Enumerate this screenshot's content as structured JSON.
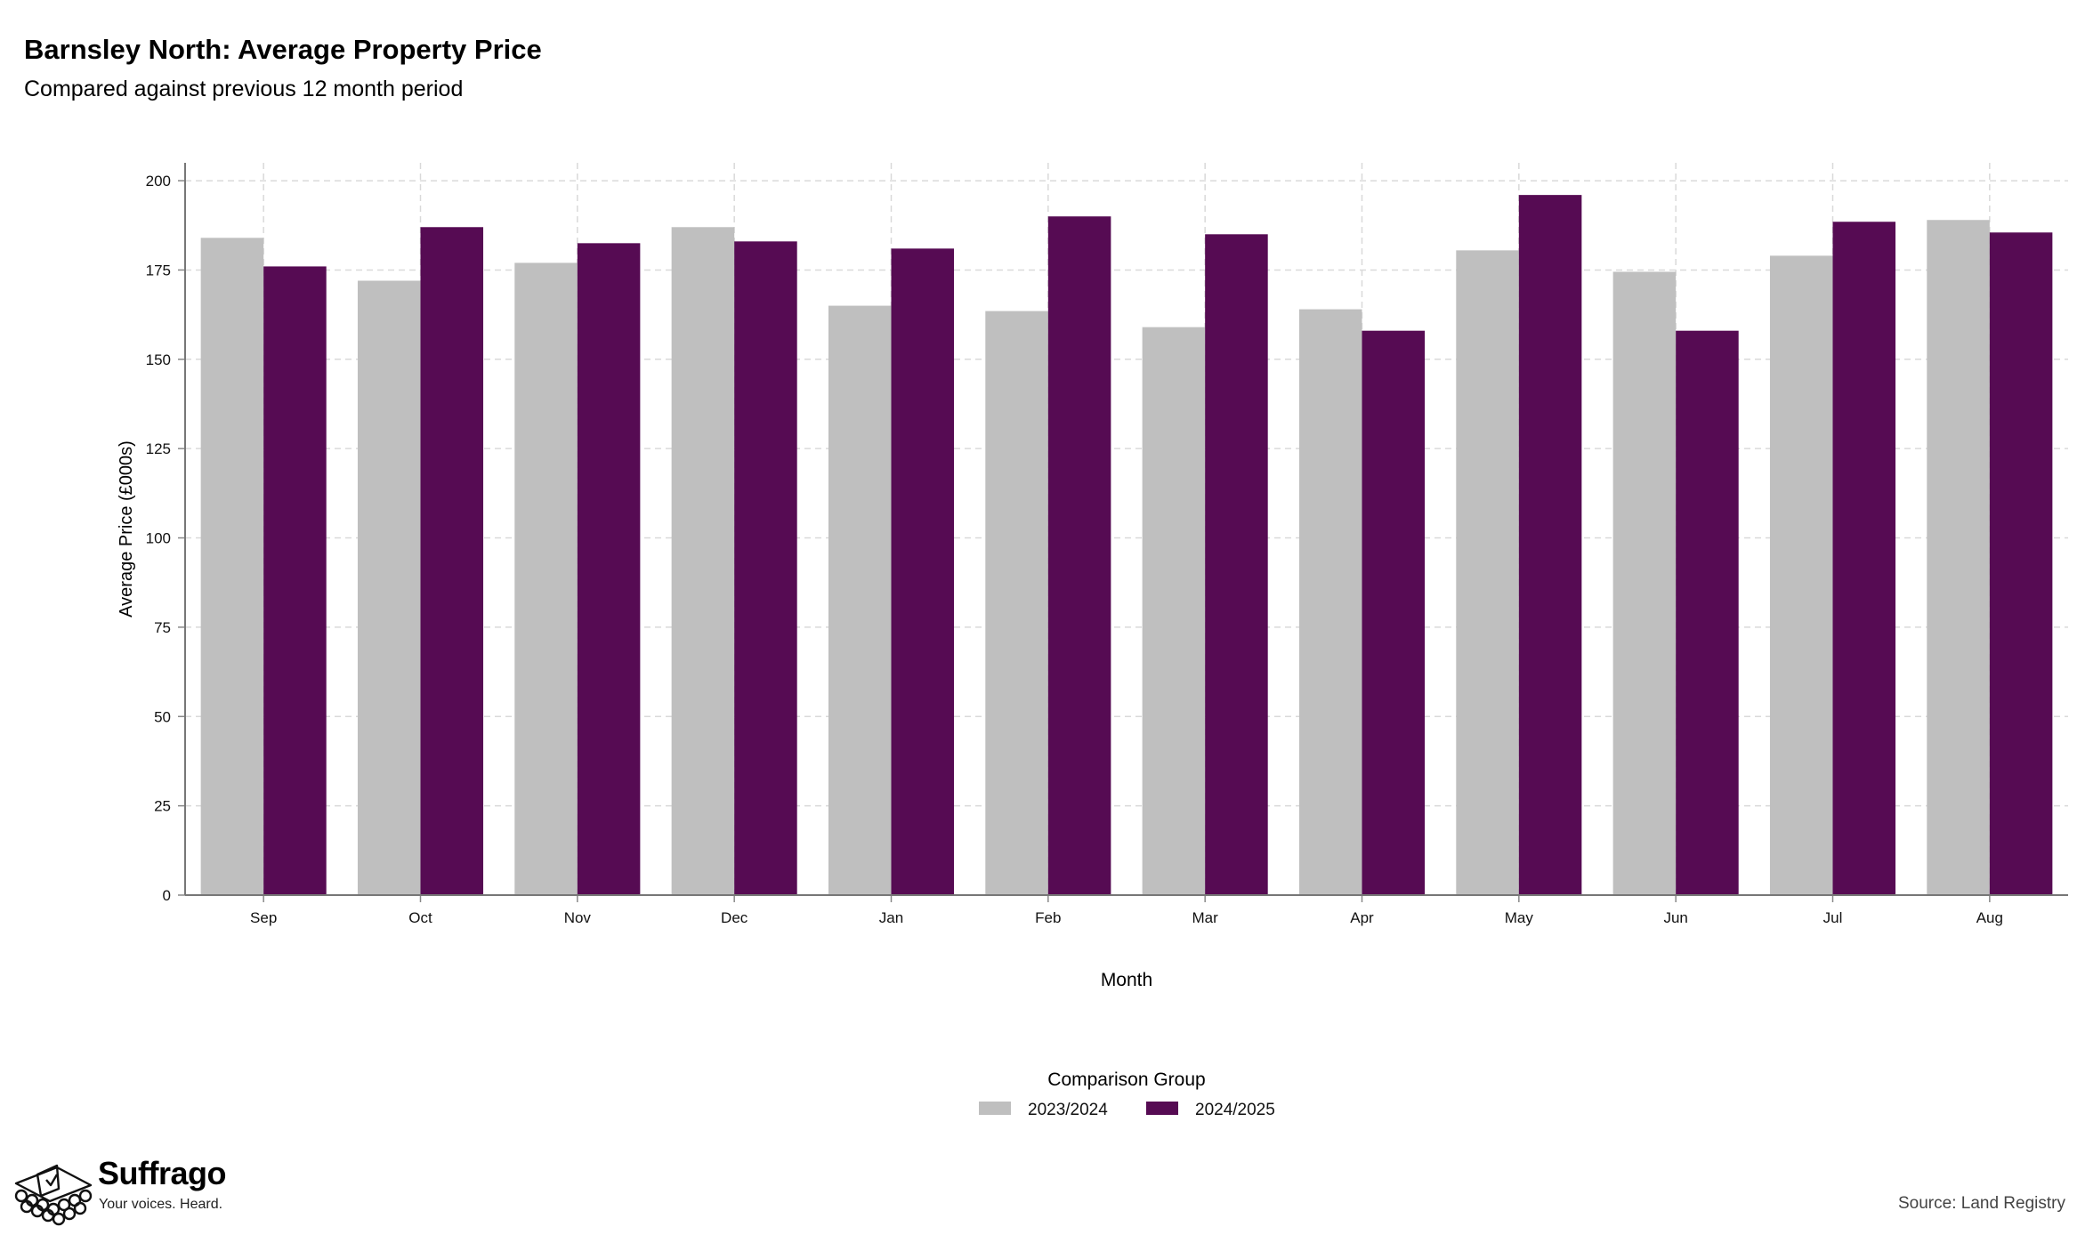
{
  "header": {
    "title": "Barnsley North: Average Property Price",
    "subtitle": "Compared against previous 12 month period"
  },
  "chart_data": {
    "type": "bar",
    "title": "Barnsley North: Average Property Price",
    "subtitle": "Compared against previous 12 month period",
    "xlabel": "Month",
    "ylabel": "Average Price (£000s)",
    "ylim": [
      0,
      205
    ],
    "yticks": [
      0,
      25,
      50,
      75,
      100,
      125,
      150,
      175,
      200
    ],
    "grid": true,
    "categories": [
      "Sep",
      "Oct",
      "Nov",
      "Dec",
      "Jan",
      "Feb",
      "Mar",
      "Apr",
      "May",
      "Jun",
      "Jul",
      "Aug"
    ],
    "series": [
      {
        "name": "2023/2024",
        "color": "#bfbfbf",
        "values": [
          184,
          172,
          177,
          187,
          165,
          163.5,
          159,
          164,
          180.5,
          174.5,
          179,
          189
        ]
      },
      {
        "name": "2024/2025",
        "color": "#560b53",
        "values": [
          176,
          187,
          182.5,
          183,
          181,
          190,
          185,
          158,
          196,
          158,
          188.5,
          185.5
        ]
      }
    ],
    "legend": {
      "title": "Comparison Group",
      "position": "bottom"
    }
  },
  "footer": {
    "brand_name": "Suffrago",
    "brand_tagline": "Your voices. Heard.",
    "source": "Source: Land Registry"
  }
}
